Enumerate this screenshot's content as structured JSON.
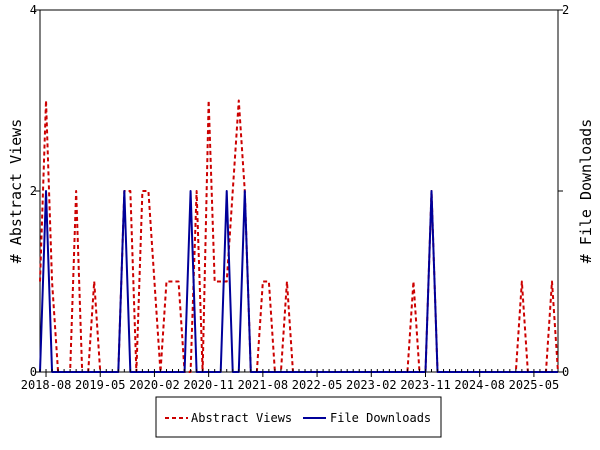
{
  "chart_data": {
    "type": "line",
    "ylabel_left": "# Abstract Views",
    "ylabel_right": "# File Downloads",
    "ylim_left": [
      0,
      4
    ],
    "ylim_right": [
      0,
      2
    ],
    "yticks_left": [
      "0",
      "2",
      "4"
    ],
    "yticks_right": [
      "0",
      "1",
      "2"
    ],
    "x_tick_labels": [
      "2018-08",
      "2019-05",
      "2020-02",
      "2020-11",
      "2021-08",
      "2022-05",
      "2023-02",
      "2023-11",
      "2024-08",
      "2025-05"
    ],
    "x_tick_dates": [
      "2018-08",
      "2019-05",
      "2020-02",
      "2020-11",
      "2021-08",
      "2022-05",
      "2023-02",
      "2023-11",
      "2024-08",
      "2025-05"
    ],
    "x_range": [
      "2018-07",
      "2025-09"
    ],
    "grid": false,
    "legend_position": "bottom",
    "series": [
      {
        "name": "Abstract Views",
        "axis": "left",
        "color": "#cc0000",
        "style": "dashed",
        "points": [
          [
            "2018-07",
            1
          ],
          [
            "2018-08",
            3
          ],
          [
            "2018-09",
            1
          ],
          [
            "2018-10",
            0
          ],
          [
            "2018-11",
            0
          ],
          [
            "2018-12",
            0
          ],
          [
            "2019-01",
            2
          ],
          [
            "2019-02",
            0
          ],
          [
            "2019-03",
            0
          ],
          [
            "2019-04",
            1
          ],
          [
            "2019-05",
            0
          ],
          [
            "2019-06",
            0
          ],
          [
            "2019-07",
            0
          ],
          [
            "2019-08",
            0
          ],
          [
            "2019-09",
            2
          ],
          [
            "2019-10",
            2
          ],
          [
            "2019-11",
            0
          ],
          [
            "2019-12",
            2
          ],
          [
            "2020-01",
            2
          ],
          [
            "2020-02",
            1
          ],
          [
            "2020-03",
            0
          ],
          [
            "2020-04",
            1
          ],
          [
            "2020-05",
            1
          ],
          [
            "2020-06",
            1
          ],
          [
            "2020-07",
            0
          ],
          [
            "2020-08",
            0
          ],
          [
            "2020-09",
            2
          ],
          [
            "2020-10",
            0
          ],
          [
            "2020-11",
            3
          ],
          [
            "2020-12",
            1
          ],
          [
            "2021-01",
            1
          ],
          [
            "2021-02",
            1
          ],
          [
            "2021-03",
            2
          ],
          [
            "2021-04",
            3
          ],
          [
            "2021-05",
            2
          ],
          [
            "2021-06",
            0
          ],
          [
            "2021-07",
            0
          ],
          [
            "2021-08",
            1
          ],
          [
            "2021-09",
            1
          ],
          [
            "2021-10",
            0
          ],
          [
            "2021-11",
            0
          ],
          [
            "2021-12",
            1
          ],
          [
            "2022-01",
            0
          ],
          [
            "2022-02",
            0
          ],
          [
            "2022-03",
            0
          ],
          [
            "2022-04",
            0
          ],
          [
            "2022-05",
            0
          ],
          [
            "2022-06",
            0
          ],
          [
            "2022-07",
            0
          ],
          [
            "2022-08",
            0
          ],
          [
            "2022-09",
            0
          ],
          [
            "2022-10",
            0
          ],
          [
            "2022-11",
            0
          ],
          [
            "2022-12",
            0
          ],
          [
            "2023-01",
            0
          ],
          [
            "2023-02",
            0
          ],
          [
            "2023-03",
            0
          ],
          [
            "2023-04",
            0
          ],
          [
            "2023-05",
            0
          ],
          [
            "2023-06",
            0
          ],
          [
            "2023-07",
            0
          ],
          [
            "2023-08",
            0
          ],
          [
            "2023-09",
            1
          ],
          [
            "2023-10",
            0
          ],
          [
            "2023-11",
            0
          ],
          [
            "2023-12",
            2
          ],
          [
            "2024-01",
            0
          ],
          [
            "2024-02",
            0
          ],
          [
            "2024-03",
            0
          ],
          [
            "2024-04",
            0
          ],
          [
            "2024-05",
            0
          ],
          [
            "2024-06",
            0
          ],
          [
            "2024-07",
            0
          ],
          [
            "2024-08",
            0
          ],
          [
            "2024-09",
            0
          ],
          [
            "2024-10",
            0
          ],
          [
            "2024-11",
            0
          ],
          [
            "2024-12",
            0
          ],
          [
            "2025-01",
            0
          ],
          [
            "2025-02",
            0
          ],
          [
            "2025-03",
            1
          ],
          [
            "2025-04",
            0
          ],
          [
            "2025-05",
            0
          ],
          [
            "2025-06",
            0
          ],
          [
            "2025-07",
            0
          ],
          [
            "2025-08",
            1
          ],
          [
            "2025-09",
            0
          ]
        ]
      },
      {
        "name": "File Downloads",
        "axis": "right",
        "color": "#000099",
        "style": "solid",
        "points": [
          [
            "2018-07",
            0
          ],
          [
            "2018-08",
            1
          ],
          [
            "2018-09",
            0
          ],
          [
            "2018-10",
            0
          ],
          [
            "2018-11",
            0
          ],
          [
            "2018-12",
            0
          ],
          [
            "2019-01",
            0
          ],
          [
            "2019-02",
            0
          ],
          [
            "2019-03",
            0
          ],
          [
            "2019-04",
            0
          ],
          [
            "2019-05",
            0
          ],
          [
            "2019-06",
            0
          ],
          [
            "2019-07",
            0
          ],
          [
            "2019-08",
            0
          ],
          [
            "2019-09",
            1
          ],
          [
            "2019-10",
            0
          ],
          [
            "2019-11",
            0
          ],
          [
            "2019-12",
            0
          ],
          [
            "2020-01",
            0
          ],
          [
            "2020-02",
            0
          ],
          [
            "2020-03",
            0
          ],
          [
            "2020-04",
            0
          ],
          [
            "2020-05",
            0
          ],
          [
            "2020-06",
            0
          ],
          [
            "2020-07",
            0
          ],
          [
            "2020-08",
            1
          ],
          [
            "2020-09",
            0
          ],
          [
            "2020-10",
            0
          ],
          [
            "2020-11",
            0
          ],
          [
            "2020-12",
            0
          ],
          [
            "2021-01",
            0
          ],
          [
            "2021-02",
            1
          ],
          [
            "2021-03",
            0
          ],
          [
            "2021-04",
            0
          ],
          [
            "2021-05",
            1
          ],
          [
            "2021-06",
            0
          ],
          [
            "2021-07",
            0
          ],
          [
            "2021-08",
            0
          ],
          [
            "2021-09",
            0
          ],
          [
            "2021-10",
            0
          ],
          [
            "2021-11",
            0
          ],
          [
            "2021-12",
            0
          ],
          [
            "2022-01",
            0
          ],
          [
            "2022-02",
            0
          ],
          [
            "2022-03",
            0
          ],
          [
            "2022-04",
            0
          ],
          [
            "2022-05",
            0
          ],
          [
            "2022-06",
            0
          ],
          [
            "2022-07",
            0
          ],
          [
            "2022-08",
            0
          ],
          [
            "2022-09",
            0
          ],
          [
            "2022-10",
            0
          ],
          [
            "2022-11",
            0
          ],
          [
            "2022-12",
            0
          ],
          [
            "2023-01",
            0
          ],
          [
            "2023-02",
            0
          ],
          [
            "2023-03",
            0
          ],
          [
            "2023-04",
            0
          ],
          [
            "2023-05",
            0
          ],
          [
            "2023-06",
            0
          ],
          [
            "2023-07",
            0
          ],
          [
            "2023-08",
            0
          ],
          [
            "2023-09",
            0
          ],
          [
            "2023-10",
            0
          ],
          [
            "2023-11",
            0
          ],
          [
            "2023-12",
            1
          ],
          [
            "2024-01",
            0
          ],
          [
            "2024-02",
            0
          ],
          [
            "2024-03",
            0
          ],
          [
            "2024-04",
            0
          ],
          [
            "2024-05",
            0
          ],
          [
            "2024-06",
            0
          ],
          [
            "2024-07",
            0
          ],
          [
            "2024-08",
            0
          ],
          [
            "2024-09",
            0
          ],
          [
            "2024-10",
            0
          ],
          [
            "2024-11",
            0
          ],
          [
            "2024-12",
            0
          ],
          [
            "2025-01",
            0
          ],
          [
            "2025-02",
            0
          ],
          [
            "2025-03",
            0
          ],
          [
            "2025-04",
            0
          ],
          [
            "2025-05",
            0
          ],
          [
            "2025-06",
            0
          ],
          [
            "2025-07",
            0
          ],
          [
            "2025-08",
            0
          ],
          [
            "2025-09",
            0
          ]
        ]
      }
    ]
  },
  "legend": {
    "items": [
      {
        "label": "Abstract Views",
        "color": "#cc0000",
        "style": "dashed"
      },
      {
        "label": "File Downloads",
        "color": "#000099",
        "style": "solid"
      }
    ]
  }
}
